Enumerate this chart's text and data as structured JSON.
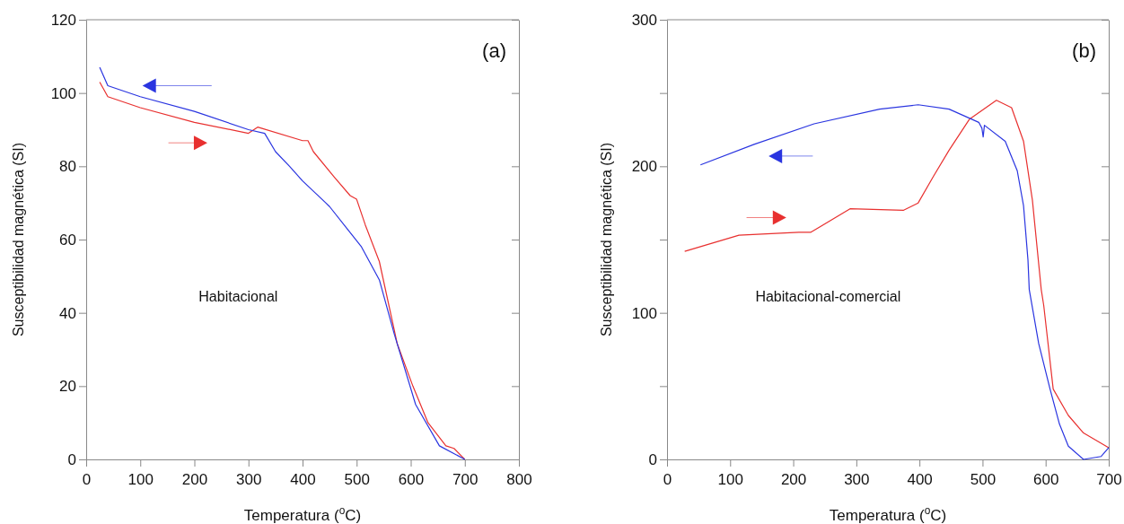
{
  "chart_data": [
    {
      "type": "line",
      "xlabel": "Temperatura ($^{o}$C)",
      "ylabel": "Susceptibilidad magnética (SI)",
      "annotations": [
        "(a)",
        "Habitacional"
      ],
      "xlim": [
        0,
        800
      ],
      "ylim": [
        0,
        120
      ],
      "xticks": [
        0,
        100,
        200,
        300,
        400,
        500,
        600,
        700,
        800
      ],
      "yticks": [
        0,
        20,
        40,
        60,
        80,
        100,
        120
      ],
      "grid": false,
      "line_style": "solid",
      "marker": "none",
      "series": [
        {
          "color": "#e8302f",
          "x": [
            25,
            40,
            100,
            200,
            300,
            317,
            400,
            410,
            420,
            459,
            488,
            500,
            516,
            542,
            575,
            604,
            632,
            665,
            680,
            700
          ],
          "values": [
            103,
            99,
            96,
            92,
            89,
            90.7,
            87,
            87,
            84,
            77,
            72,
            71,
            64,
            54,
            31.6,
            20,
            10,
            3.7,
            3,
            0
          ]
        },
        {
          "color": "#2a35e0",
          "x": [
            25,
            40,
            100,
            200,
            300,
            330,
            350,
            376,
            400,
            443,
            450,
            509,
            542,
            570,
            609,
            653,
            700
          ],
          "values": [
            107,
            102,
            99,
            95,
            90,
            89,
            84,
            80,
            76,
            70,
            69,
            58,
            49,
            34,
            15,
            3.7,
            0
          ]
        }
      ]
    },
    {
      "type": "line",
      "xlabel": "Temperatura ($^{o}$C)",
      "ylabel": "Susceptibilidad magnética (SI)",
      "annotations": [
        "(b)",
        "Habitacional-comercial"
      ],
      "xlim": [
        0,
        700
      ],
      "ylim": [
        0,
        300
      ],
      "xticks": [
        0,
        100,
        200,
        300,
        400,
        500,
        600,
        700
      ],
      "yticks": [
        0,
        {
          "value": 50,
          "label": null
        },
        100,
        {
          "value": 150,
          "label": null
        },
        200,
        {
          "value": 250,
          "label": null
        },
        300
      ],
      "grid": false,
      "line_style": "solid",
      "marker": "none",
      "series": [
        {
          "color": "#e8302f",
          "x": [
            28,
            114,
            209,
            228,
            290,
            375,
            398,
            422,
            447,
            479,
            522,
            546,
            565,
            579,
            593,
            597,
            612,
            636,
            660,
            700
          ],
          "values": [
            142,
            153,
            155,
            155,
            171,
            170,
            175,
            193,
            211,
            232,
            245,
            240,
            217,
            177,
            116,
            105,
            48,
            30,
            18,
            8
          ]
        },
        {
          "color": "#2a35e0",
          "x": [
            53,
            138,
            233,
            337,
            398,
            447,
            494,
            499,
            501,
            503,
            536,
            555,
            565,
            572,
            574,
            589,
            607,
            622,
            636,
            660,
            688,
            700
          ],
          "values": [
            201,
            215,
            229,
            239,
            242,
            239,
            230,
            226,
            220,
            228,
            217,
            197,
            173,
            136,
            116,
            79,
            48,
            24,
            9,
            0,
            2,
            8
          ]
        }
      ]
    }
  ]
}
